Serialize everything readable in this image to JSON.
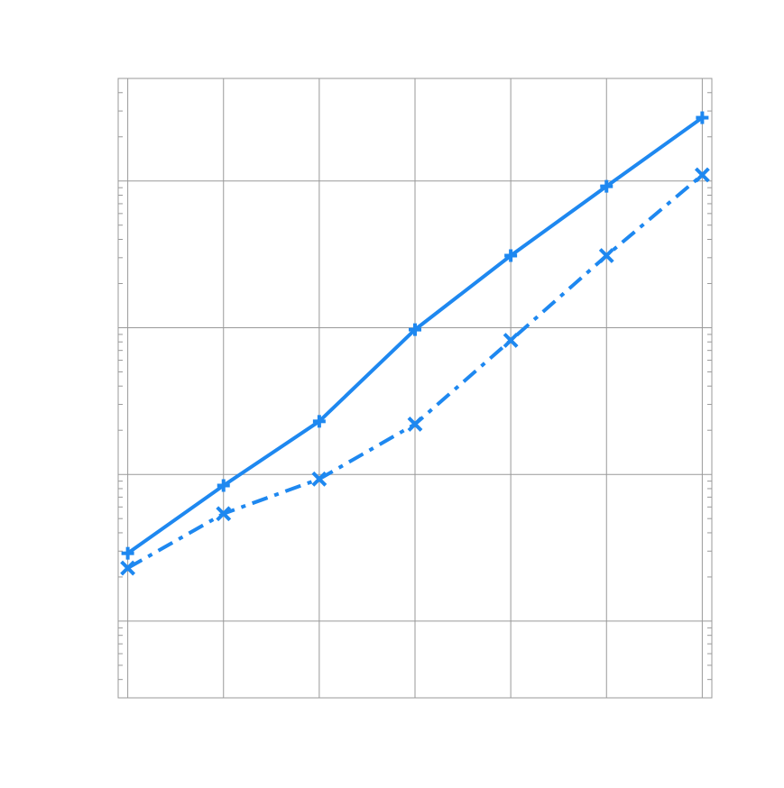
{
  "chart_data": {
    "type": "line",
    "title": "",
    "xlabel": "",
    "ylabel": "",
    "y_scale": "log",
    "grid": true,
    "legend": "none",
    "x": [
      1,
      2,
      3,
      4,
      5,
      6,
      7
    ],
    "xlim": [
      0.9,
      7.1
    ],
    "ylim": [
      0.03,
      500
    ],
    "y_major_gridlines": [
      0.1,
      1,
      10,
      100
    ],
    "x_major_gridlines": [
      1,
      2,
      3,
      4,
      5,
      6,
      7
    ],
    "series": [
      {
        "marker": "plus",
        "line_style": "solid",
        "color": "#1e88f0",
        "values": [
          0.29,
          0.84,
          2.3,
          9.7,
          31,
          92,
          270
        ]
      },
      {
        "marker": "x",
        "line_style": "dashdot",
        "color": "#1e88f0",
        "values": [
          0.23,
          0.54,
          0.93,
          2.2,
          8.2,
          31,
          110
        ]
      }
    ]
  }
}
